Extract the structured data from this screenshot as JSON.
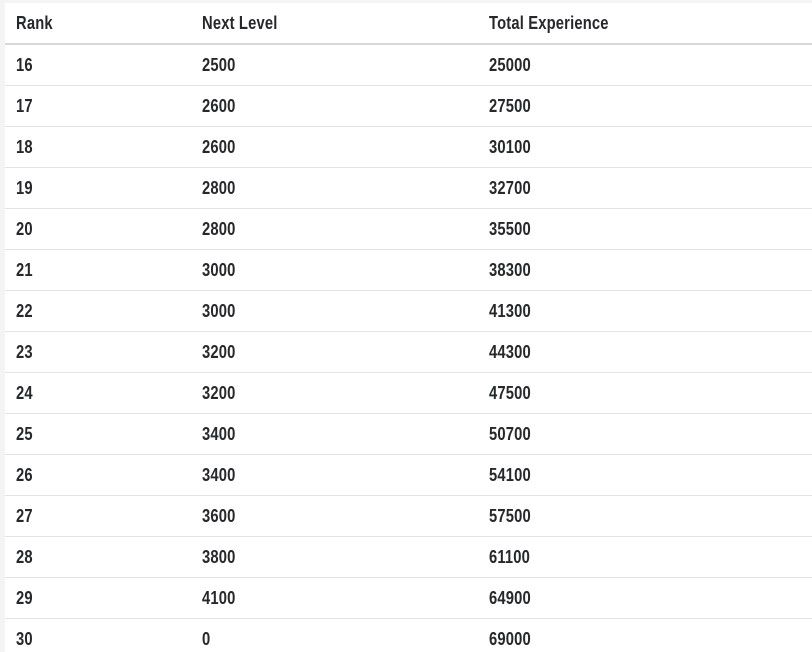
{
  "colors": {
    "page_background": "#f4f4f4",
    "table_background": "#ffffff",
    "header_border": "#d8d8d8",
    "row_border": "#e4e4e4",
    "text": "#26282b"
  },
  "table": {
    "columns": [
      {
        "key": "rank",
        "label": "Rank"
      },
      {
        "key": "next_level",
        "label": "Next Level"
      },
      {
        "key": "total_experience",
        "label": "Total Experience"
      }
    ],
    "rows": [
      {
        "rank": "16",
        "next_level": "2500",
        "total_experience": "25000"
      },
      {
        "rank": "17",
        "next_level": "2600",
        "total_experience": "27500"
      },
      {
        "rank": "18",
        "next_level": "2600",
        "total_experience": "30100"
      },
      {
        "rank": "19",
        "next_level": "2800",
        "total_experience": "32700"
      },
      {
        "rank": "20",
        "next_level": "2800",
        "total_experience": "35500"
      },
      {
        "rank": "21",
        "next_level": "3000",
        "total_experience": "38300"
      },
      {
        "rank": "22",
        "next_level": "3000",
        "total_experience": "41300"
      },
      {
        "rank": "23",
        "next_level": "3200",
        "total_experience": "44300"
      },
      {
        "rank": "24",
        "next_level": "3200",
        "total_experience": "47500"
      },
      {
        "rank": "25",
        "next_level": "3400",
        "total_experience": "50700"
      },
      {
        "rank": "26",
        "next_level": "3400",
        "total_experience": "54100"
      },
      {
        "rank": "27",
        "next_level": "3600",
        "total_experience": "57500"
      },
      {
        "rank": "28",
        "next_level": "3800",
        "total_experience": "61100"
      },
      {
        "rank": "29",
        "next_level": "4100",
        "total_experience": "64900"
      },
      {
        "rank": "30",
        "next_level": "0",
        "total_experience": "69000"
      }
    ]
  }
}
